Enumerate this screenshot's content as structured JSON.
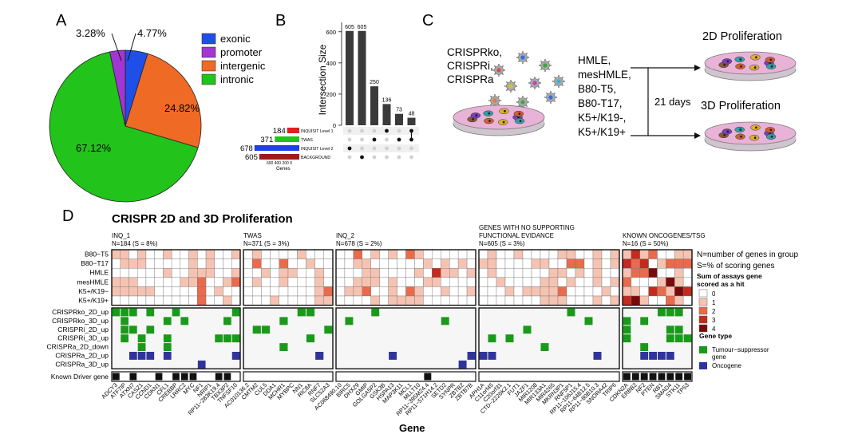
{
  "panel_a": {
    "letter": "A",
    "legend": [
      {
        "label": "exonic",
        "color": "#1f4fe8"
      },
      {
        "label": "promoter",
        "color": "#a335d3"
      },
      {
        "label": "intergenic",
        "color": "#ef6a25"
      },
      {
        "label": "intronic",
        "color": "#22c31a"
      }
    ],
    "slices": [
      {
        "label": "exonic",
        "value": 4.77,
        "text": "4.77%"
      },
      {
        "label": "intergenic",
        "value": 24.82,
        "text": "24.82%"
      },
      {
        "label": "intronic",
        "value": 67.12,
        "text": "67.12%"
      },
      {
        "label": "promoter",
        "value": 3.28,
        "text": "3.28%"
      }
    ]
  },
  "panel_b": {
    "letter": "B",
    "ylabel": "Intersection Size",
    "yticks": [
      "0",
      "200",
      "400",
      "600"
    ],
    "bars": [
      605,
      605,
      250,
      136,
      73,
      48
    ],
    "sets": [
      {
        "name": "INQUISIT Level 1",
        "size": "184",
        "color": "#e02020"
      },
      {
        "name": "TWAS",
        "size": "371",
        "color": "#22c31a"
      },
      {
        "name": "INQUISIT Level 2",
        "size": "678",
        "color": "#1f3fe8"
      },
      {
        "name": "BACKGROUND",
        "size": "605",
        "color": "#a01a1a"
      }
    ],
    "set_axis_ticks": "600 400 200  0",
    "set_axis_label": "Genes",
    "matrix": [
      [
        2
      ],
      [
        3
      ],
      [
        1
      ],
      [
        0
      ],
      [
        1
      ],
      [
        0,
        1
      ]
    ]
  },
  "panel_c": {
    "letter": "C",
    "crispr_text": [
      "CRISPRko,",
      "CRISPRi,",
      "CRISPRa"
    ],
    "cell_lines": [
      "HMLE,",
      "mesHMLE,",
      "B80-T5,",
      "B80-T17,",
      "K5+/K19-,",
      "K5+/K19+"
    ],
    "days": "21 days",
    "out_2d": "2D Proliferation",
    "out_3d": "3D Proliferation"
  },
  "panel_d": {
    "letter": "D",
    "title": "CRISPR 2D and 3D Proliferation",
    "groups": [
      {
        "title": "INQ_1",
        "subtitle": "N=184 (S = 8%)"
      },
      {
        "title": "TWAS",
        "subtitle": "N=371 (S = 3%)"
      },
      {
        "title": "INQ_2",
        "subtitle": "N=678 (S = 2%)"
      },
      {
        "title": "GENES WITH NO SUPPORTING",
        "subtitle": "FUNCTIONAL EVIDANCE",
        "subtitle2": "N=605 (S = 3%)"
      },
      {
        "title": "KNOWN ONCOGENES/TSG",
        "subtitle": "N=16 (S = 50%)"
      }
    ],
    "cell_rows": [
      "B80−T5",
      "B80−T17",
      "HMLE",
      "mesHMLE",
      "K5+/K19−",
      "K5+/K19+"
    ],
    "screen_rows": [
      "CRISPRko_2D_up",
      "CRISPRko_3D_up",
      "CRISPRi_2D_up",
      "CRISPRi_3D_up",
      "CRISPRa_2D_down",
      "CRISPRa_2D_up",
      "CRISPRa_3D_up"
    ],
    "driver_row": "Known Driver gene",
    "gene_axis_label": "Gene",
    "note1": "N=number of genes in group",
    "note2": "S=% of scoring genes",
    "legend_title1": "Sum of assays gene",
    "legend_title2": "scored as a hit",
    "heat_levels": [
      {
        "label": "0",
        "color": "#ffffff"
      },
      {
        "label": "1",
        "color": "#f6c3b2"
      },
      {
        "label": "2",
        "color": "#ea6a4c"
      },
      {
        "label": "3",
        "color": "#c42a1e"
      },
      {
        "label": "4",
        "color": "#7a0a0a"
      }
    ],
    "gene_type_title": "Gene type",
    "gene_types": [
      {
        "label": "Tumour−suppressor gene",
        "color": "#1a9a1a"
      },
      {
        "label": "Oncogene",
        "color": "#30349a"
      }
    ],
    "genes": [
      [
        "ADCY3",
        "ATF7IP",
        "ATXN7",
        "CASZ1",
        "CCND1",
        "CDKN1",
        "CFL1",
        "CREBBP",
        "LRRC2",
        "MYC",
        "NF1",
        "NRIP1",
        "RP11−283K19.4",
        "TBX3P2",
        "TNFSF10"
      ],
      [
        "AC010136.2",
        "CMTM2",
        "CUL5",
        "DDA1",
        "MCHR1",
        "MYBPC",
        "NN1",
        "RIC8A",
        "RNF7",
        "SLC52A3"
      ],
      [
        "AC068490.10",
        "BIRC5",
        "DHX29",
        "GMIP",
        "GOLGA5P2",
        "GSK3B",
        "HSPA13",
        "MAP3K11",
        "MCL1",
        "MLLT10",
        "RP11−395M24.4",
        "RP11−571H14.2",
        "SETD2",
        "SYNPR",
        "ZBTB2",
        "ZBTB7B"
      ],
      [
        "APH1A",
        "C11orf45",
        "C20orf31",
        "CTD−2226K2.1",
        "FUT1",
        "JAZF1",
        "MIR1208",
        "MIR133A1",
        "MIR4265",
        "MKRN3P1",
        "RNF5P1",
        "RP11−106J15.4",
        "RP11−64B12.5",
        "RP11−80B10.3",
        "SNORA42",
        "TRIP6"
      ],
      [
        "CDKN2A",
        "ERBB2",
        "NF2",
        "PTEN",
        "RB1",
        "SMAD4",
        "STK11",
        "TP53"
      ]
    ]
  }
}
